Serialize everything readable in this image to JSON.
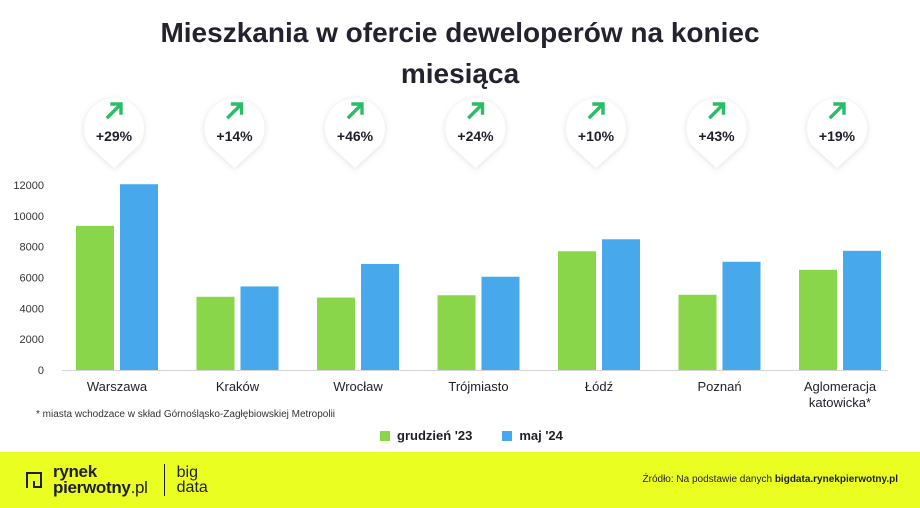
{
  "title_line1": "Mieszkania w ofercie deweloperów na koniec",
  "title_line2": "miesiąca",
  "chart_data": {
    "type": "bar",
    "categories": [
      "Warszawa",
      "Kraków",
      "Wrocław",
      "Trójmiasto",
      "Łódź",
      "Poznań",
      "Aglomeracja katowicka*"
    ],
    "category_lines": [
      [
        "Warszawa"
      ],
      [
        "Kraków"
      ],
      [
        "Wrocław"
      ],
      [
        "Trójmiasto"
      ],
      [
        "Łódź"
      ],
      [
        "Poznań"
      ],
      [
        "Aglomeracja",
        "katowicka*"
      ]
    ],
    "series": [
      {
        "name": "grudzień '23",
        "color": "#8ad64a",
        "values": [
          9350,
          4750,
          4700,
          4850,
          7700,
          4880,
          6500
        ]
      },
      {
        "name": "maj '24",
        "color": "#47a9ec",
        "values": [
          12050,
          5420,
          6880,
          6050,
          8480,
          7020,
          7730
        ]
      }
    ],
    "changes": [
      "+29%",
      "+14%",
      "+46%",
      "+24%",
      "+10%",
      "+43%",
      "+19%"
    ],
    "yticks": [
      0,
      2000,
      4000,
      6000,
      8000,
      10000,
      12000
    ],
    "ylim": [
      0,
      12000
    ],
    "grid": false,
    "legend_position": "bottom"
  },
  "footnote": "* miasta wchodzace w skład Górnośląsko-Zagłębiowskiej Metropolii",
  "legend": {
    "dec_label": "grudzień '23",
    "may_label": "maj '24",
    "dec_color": "#8ad64a",
    "may_color": "#47a9ec"
  },
  "footer": {
    "brand_line1": "rynek",
    "brand_line2": "pierwotny",
    "brand_tld": ".pl",
    "brand_sub1": "big",
    "brand_sub2": "data",
    "source_prefix": "Źródło: Na podstawie danych",
    "source_site": "bigdata.rynekpierwotny.pl",
    "background": "#eaff21"
  }
}
